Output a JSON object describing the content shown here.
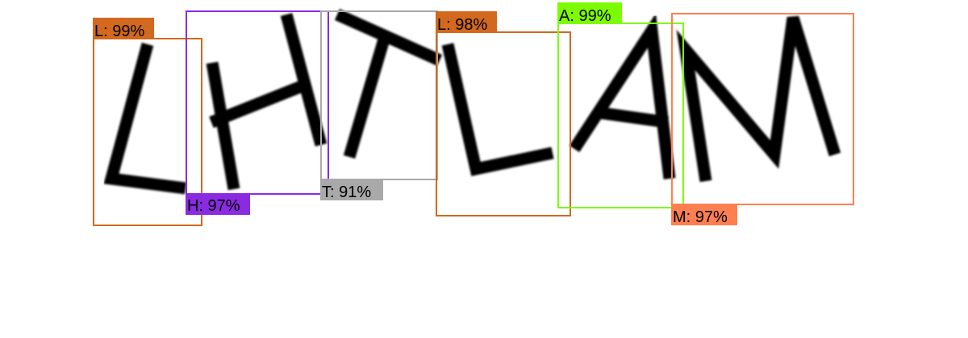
{
  "colors": {
    "background": "#ffffff",
    "ink": "#000000"
  },
  "detections": [
    {
      "label_text": "L: 99%",
      "color": "#d2691e"
    },
    {
      "label_text": "H: 97%",
      "color": "#8a2be2"
    },
    {
      "label_text": "T: 91%",
      "color": "#a9a9a9"
    },
    {
      "label_text": "L: 98%",
      "color": "#d2691e"
    },
    {
      "label_text": "A: 99%",
      "color": "#7cfc00"
    },
    {
      "label_text": "M: 97%",
      "color": "#ff7f50"
    }
  ]
}
